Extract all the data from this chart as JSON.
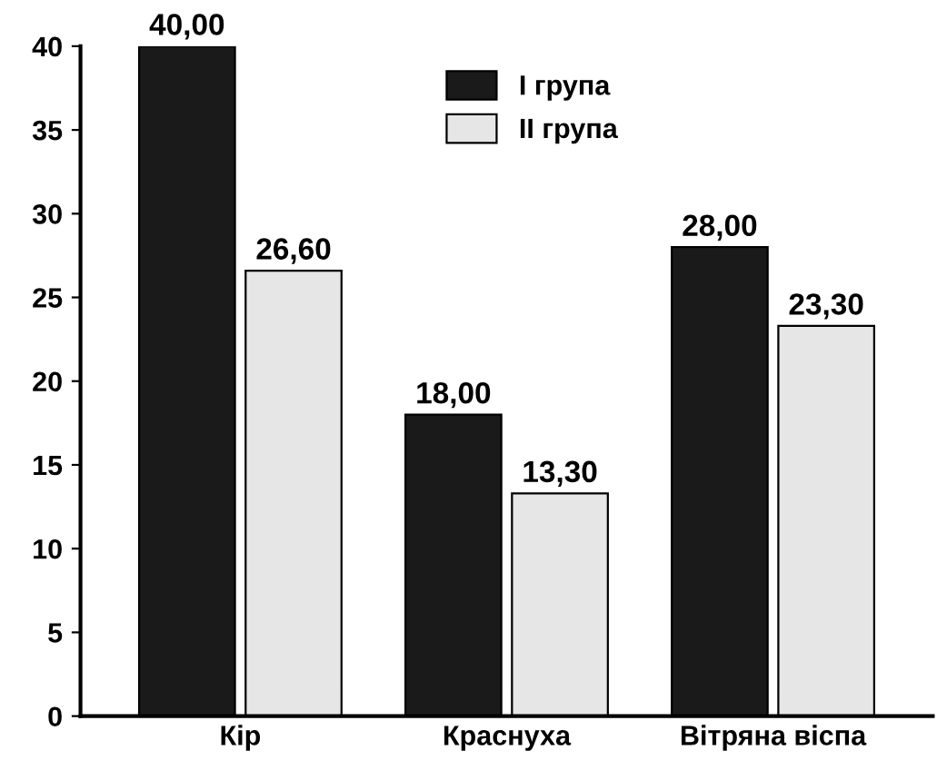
{
  "chart_data": {
    "type": "bar",
    "categories": [
      "Кір",
      "Краснуха",
      "Вітряна віспа"
    ],
    "series": [
      {
        "name": "I група",
        "color": "#1a1a1a",
        "values": [
          40,
          18,
          28
        ],
        "value_labels": [
          "40,00",
          "18,00",
          "28,00"
        ]
      },
      {
        "name": "II група",
        "color": "#e6e6e6",
        "values": [
          26.6,
          13.3,
          23.3
        ],
        "value_labels": [
          "26,60",
          "13,30",
          "23,30"
        ]
      }
    ],
    "ylim": [
      0,
      40
    ],
    "yticks": [
      0,
      5,
      10,
      15,
      20,
      25,
      30,
      35,
      40
    ],
    "grid": false,
    "legend": "top"
  }
}
